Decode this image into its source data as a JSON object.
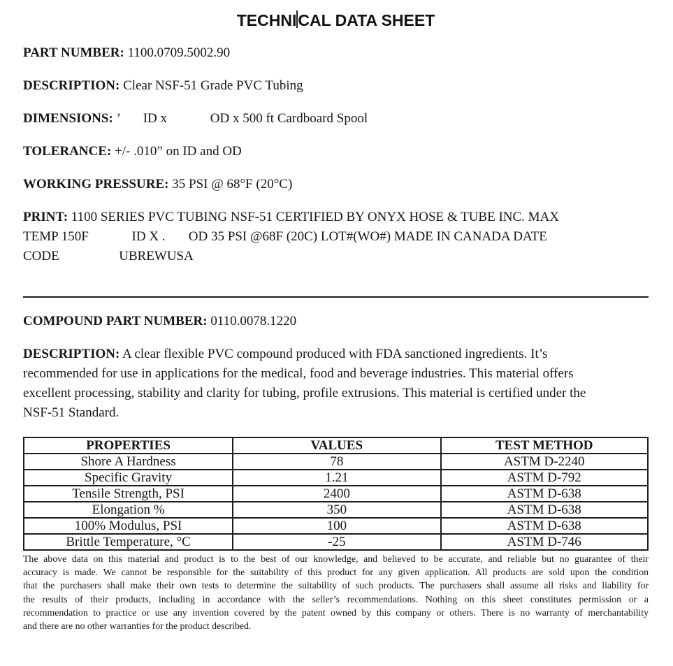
{
  "title": {
    "part1": "TECHNI",
    "part2": "CAL DATA SHEET"
  },
  "fields": [
    {
      "label": "PART NUMBER:",
      "value": " 1100.0709.5002.90"
    },
    {
      "label": "DESCRIPTION:",
      "value": " Clear NSF-51 Grade PVC Tubing"
    },
    {
      "label": "DIMENSIONS:",
      "value": " ’       ID x             OD x 500 ft Cardboard Spool"
    },
    {
      "label": "TOLERANCE:",
      "value": " +/- .010” on ID and OD"
    },
    {
      "label": "WORKING PRESSURE:",
      "value": " 35 PSI @ 68°F (20°C)"
    }
  ],
  "print": {
    "label": "PRINT:",
    "line1_rest": " 1100 SERIES PVC TUBING NSF-51 CERTIFIED BY ONYX HOSE & TUBE INC. MAX",
    "line2": "TEMP 150F             ID X .       OD 35 PSI @68F (20C) LOT#(WO#) MADE IN CANADA DATE",
    "line3": "CODE                  UBREWUSA"
  },
  "compound": {
    "label": "COMPOUND PART NUMBER:",
    "value": " 0110.0078.1220"
  },
  "compound_description": {
    "label": "DESCRIPTION:",
    "line1_rest": " A clear flexible PVC compound produced with FDA sanctioned ingredients. It’s",
    "line2": "recommended for use in applications for the medical, food and beverage industries. This material offers",
    "line3": "excellent processing, stability and clarity for tubing, profile extrusions. This material is certified under the",
    "line4": "NSF-51 Standard."
  },
  "properties_table": {
    "headers": [
      "PROPERTIES",
      "VALUES",
      "TEST METHOD"
    ],
    "rows": [
      [
        "Shore A Hardness",
        "78",
        "ASTM D-2240"
      ],
      [
        "Specific Gravity",
        "1.21",
        "ASTM D-792"
      ],
      [
        "Tensile Strength, PSI",
        "2400",
        "ASTM D-638"
      ],
      [
        "Elongation %",
        "350",
        "ASTM D-638"
      ],
      [
        "100% Modulus, PSI",
        "100",
        "ASTM D-638"
      ],
      [
        "Brittle Temperature, °C",
        "-25",
        "ASTM D-746"
      ]
    ]
  },
  "disclaimer": {
    "lines": [
      "The above data on this material and product is to the best of our knowledge, and believed to be accurate, and reliable but no guarantee of their",
      "accuracy is made. We cannot be responsible for the suitability of this product for any given application. All products are sold upon the condition",
      "that the purchasers shall make their own tests to determine the suitability of such products. The purchasers shall assume all risks and liability for",
      "the results of their products, including in accordance with the seller’s recommendations. Nothing on this sheet constitutes permission or a",
      "recommendation to practice or use any invention covered by the patent owned by this company or others. There is no warranty of merchantability",
      "and there are no other warranties for the product described."
    ]
  }
}
